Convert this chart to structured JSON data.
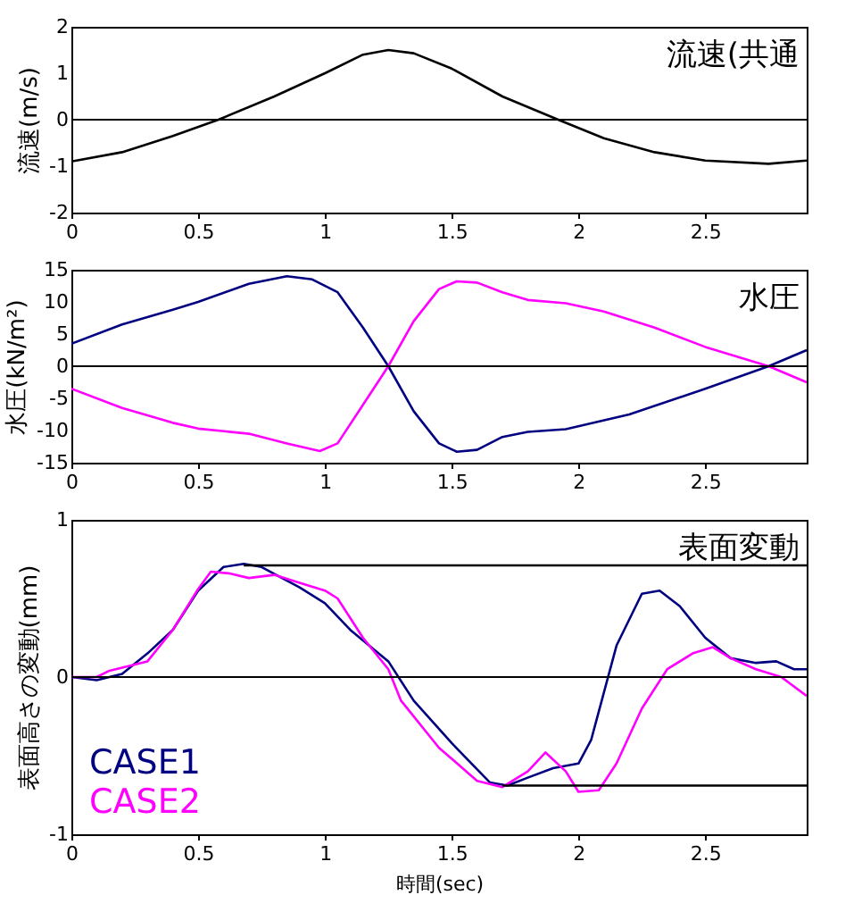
{
  "chart_data": [
    {
      "type": "line",
      "title": "流速(共通",
      "ylabel": "流速(m/s)",
      "xlim": [
        0,
        2.9
      ],
      "xticks": [
        0,
        0.5,
        1,
        1.5,
        2,
        2.5
      ],
      "ylim": [
        -2,
        2
      ],
      "yticks": [
        -2,
        -1,
        0,
        1,
        2
      ],
      "grid": false,
      "marker": "none",
      "line_style": "solid",
      "ref_lines": [
        {
          "axis": "y",
          "value": 0,
          "color": "#000000"
        }
      ],
      "series": [
        {
          "color": "#000000",
          "x": [
            0,
            0.2,
            0.4,
            0.58,
            0.8,
            1.0,
            1.15,
            1.25,
            1.35,
            1.5,
            1.7,
            1.92,
            2.1,
            2.3,
            2.5,
            2.75,
            2.9
          ],
          "values": [
            -0.9,
            -0.7,
            -0.35,
            0,
            0.5,
            1.0,
            1.4,
            1.5,
            1.43,
            1.1,
            0.5,
            0,
            -0.4,
            -0.7,
            -0.88,
            -0.95,
            -0.88
          ]
        }
      ]
    },
    {
      "type": "line",
      "title": "水圧",
      "ylabel": "水圧(kN/m²)",
      "xlim": [
        0,
        2.9
      ],
      "xticks": [
        0,
        0.5,
        1,
        1.5,
        2,
        2.5
      ],
      "ylim": [
        -15,
        15
      ],
      "yticks": [
        -15,
        -10,
        -5,
        0,
        5,
        10,
        15
      ],
      "grid": false,
      "marker": "none",
      "line_style": "solid",
      "ref_lines": [
        {
          "axis": "y",
          "value": 0,
          "color": "#000000"
        }
      ],
      "series": [
        {
          "color": "#000080",
          "x": [
            0,
            0.2,
            0.4,
            0.5,
            0.7,
            0.85,
            0.95,
            1.05,
            1.15,
            1.25,
            1.35,
            1.45,
            1.52,
            1.6,
            1.7,
            1.8,
            1.95,
            2.2,
            2.5,
            2.75,
            2.9
          ],
          "values": [
            3.5,
            6.5,
            8.8,
            10,
            12.8,
            14,
            13.5,
            11.5,
            6,
            0,
            -7,
            -12,
            -13.3,
            -13,
            -11,
            -10.2,
            -9.8,
            -7.5,
            -3.5,
            0,
            2.5
          ]
        },
        {
          "color": "#ff00ff",
          "x": [
            0,
            0.2,
            0.4,
            0.5,
            0.7,
            0.85,
            0.98,
            1.05,
            1.15,
            1.25,
            1.35,
            1.45,
            1.52,
            1.6,
            1.7,
            1.8,
            1.95,
            2.1,
            2.3,
            2.5,
            2.75,
            2.9
          ],
          "values": [
            -3.5,
            -6.5,
            -8.8,
            -9.7,
            -10.5,
            -12,
            -13.2,
            -12,
            -6,
            0,
            7,
            12,
            13.2,
            13,
            11.5,
            10.3,
            9.8,
            8.5,
            6,
            3,
            0,
            -2.5
          ]
        }
      ]
    },
    {
      "type": "line",
      "title": "表面変動",
      "xlabel": "時間(sec)",
      "ylabel": "表面高さの変動(mm)",
      "xlim": [
        0,
        2.9
      ],
      "xticks": [
        0,
        0.5,
        1,
        1.5,
        2,
        2.5
      ],
      "ylim": [
        -1,
        1
      ],
      "yticks": [
        -1,
        0,
        1
      ],
      "grid": false,
      "marker": "none",
      "line_style": "solid",
      "ref_lines": [
        {
          "axis": "y",
          "value": 0,
          "color": "#000000"
        }
      ],
      "series": [
        {
          "name": "CASE1",
          "color": "#000080",
          "x": [
            0,
            0.1,
            0.2,
            0.3,
            0.4,
            0.5,
            0.6,
            0.68,
            0.75,
            0.9,
            1.0,
            1.1,
            1.25,
            1.35,
            1.5,
            1.65,
            1.72,
            1.8,
            1.9,
            2.0,
            2.05,
            2.15,
            2.25,
            2.32,
            2.4,
            2.5,
            2.6,
            2.7,
            2.78,
            2.85,
            2.9
          ],
          "values": [
            0,
            -0.02,
            0.02,
            0.15,
            0.3,
            0.55,
            0.7,
            0.72,
            0.7,
            0.57,
            0.47,
            0.3,
            0.1,
            -0.15,
            -0.42,
            -0.67,
            -0.69,
            -0.64,
            -0.58,
            -0.55,
            -0.4,
            0.2,
            0.53,
            0.55,
            0.45,
            0.25,
            0.12,
            0.09,
            0.1,
            0.05,
            0.05
          ]
        },
        {
          "name": "CASE2",
          "color": "#ff00ff",
          "x": [
            0,
            0.1,
            0.15,
            0.3,
            0.4,
            0.5,
            0.55,
            0.62,
            0.7,
            0.8,
            0.9,
            1.0,
            1.05,
            1.15,
            1.25,
            1.3,
            1.45,
            1.6,
            1.7,
            1.8,
            1.87,
            1.95,
            2.0,
            2.08,
            2.15,
            2.25,
            2.35,
            2.45,
            2.53,
            2.6,
            2.7,
            2.8,
            2.9
          ],
          "values": [
            0,
            0,
            0.04,
            0.1,
            0.3,
            0.56,
            0.67,
            0.66,
            0.63,
            0.65,
            0.6,
            0.55,
            0.5,
            0.25,
            0.05,
            -0.15,
            -0.45,
            -0.66,
            -0.7,
            -0.6,
            -0.48,
            -0.6,
            -0.73,
            -0.72,
            -0.55,
            -0.2,
            0.05,
            0.15,
            0.19,
            0.12,
            0.05,
            0,
            -0.12
          ]
        },
        {
          "type": "line",
          "color": "#000000",
          "x": [
            0.68,
            2.9
          ],
          "values": [
            0.71,
            0.71
          ]
        },
        {
          "type": "line",
          "color": "#000000",
          "x": [
            1.7,
            2.9
          ],
          "values": [
            -0.69,
            -0.69
          ]
        }
      ]
    }
  ]
}
